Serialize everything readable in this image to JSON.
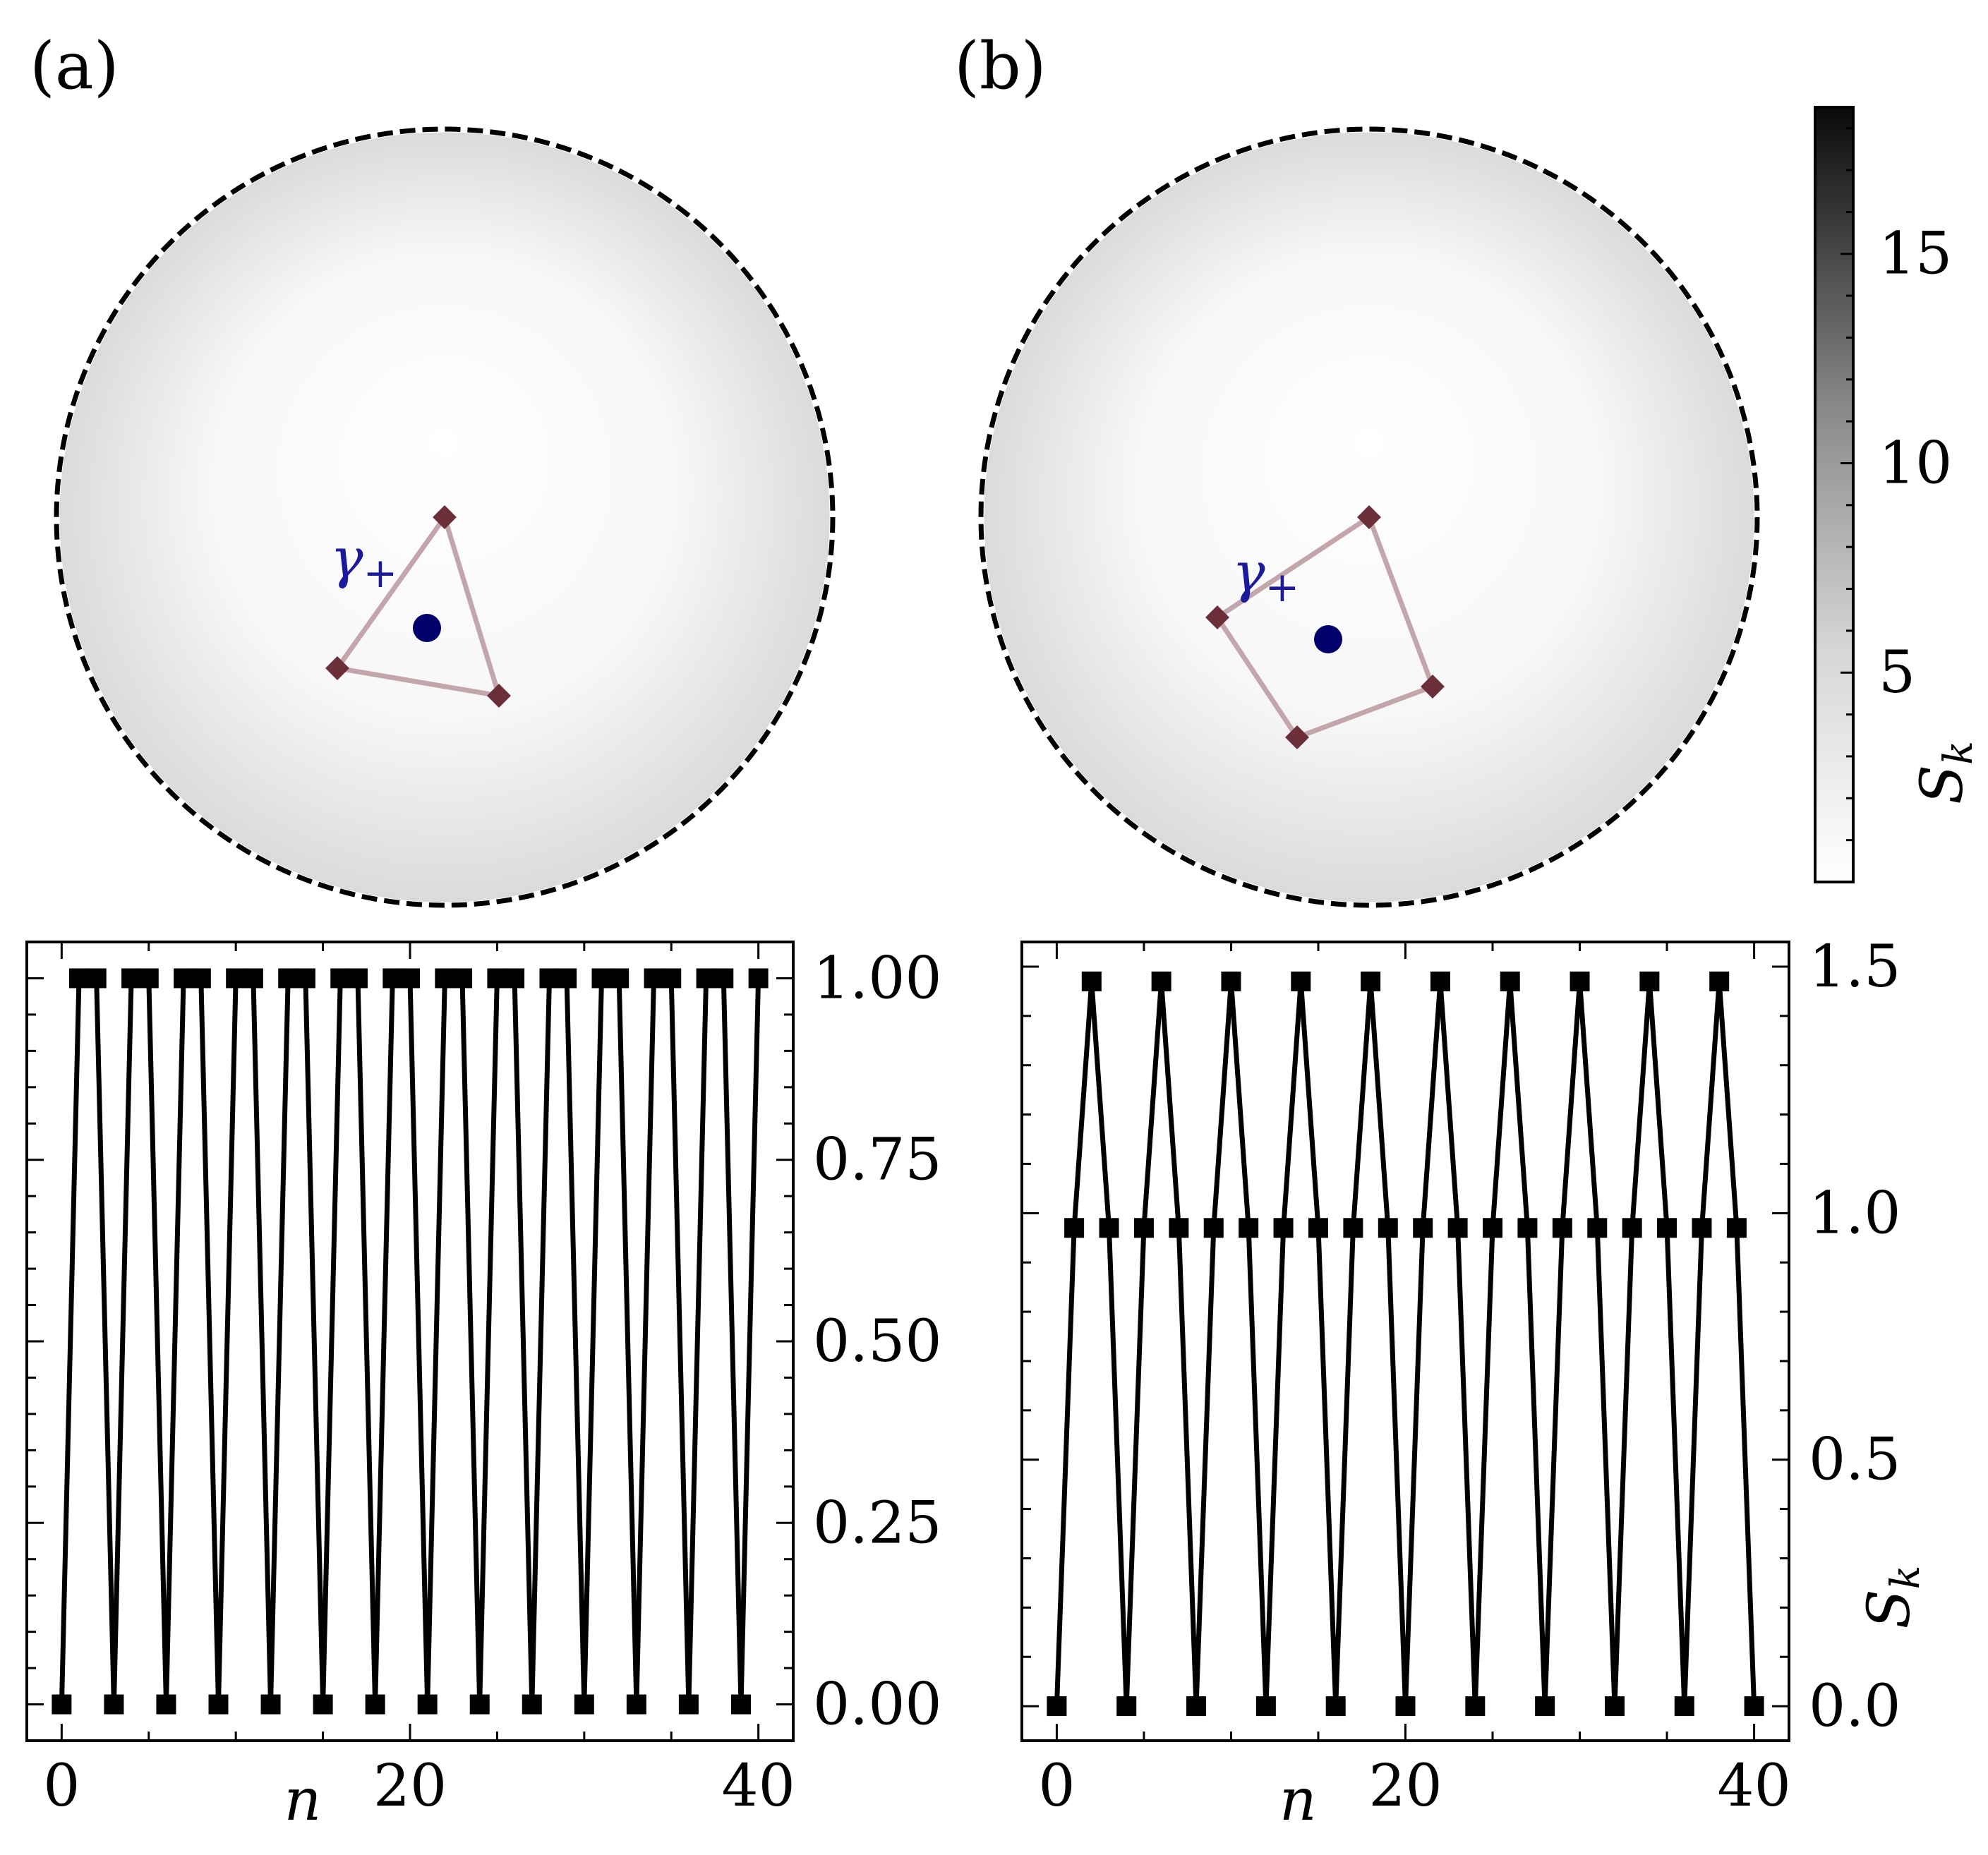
{
  "panel_labels": {
    "a": "(a)",
    "b": "(b)"
  },
  "colors": {
    "contour": "#6b2f3a",
    "contour_line": "#c3a6ab",
    "point": "#00006b",
    "gamma_label": "#1a1a9a",
    "line": "#000000"
  },
  "gamma_label": "γ+",
  "colorbar": {
    "label": "S_k",
    "range": [
      0,
      18.5
    ],
    "ticks": [
      5,
      10,
      15
    ],
    "tick_labels": [
      "5",
      "10",
      "15"
    ]
  },
  "chart_data": [
    {
      "panel": "(a)",
      "type": "line",
      "xlabel": "n",
      "ylabel": "",
      "xlim": [
        -2,
        42
      ],
      "ylim": [
        -0.05,
        1.05
      ],
      "xticks": [
        0,
        20,
        40
      ],
      "xtick_labels": [
        "0",
        "20",
        "40"
      ],
      "yticks": [
        0,
        0.25,
        0.5,
        0.75,
        1.0
      ],
      "ytick_labels": [
        "0.00",
        "0.25",
        "0.50",
        "0.75",
        "1.00"
      ],
      "period_pattern": [
        0,
        1,
        1
      ],
      "x": [
        0,
        1,
        2,
        3,
        4,
        5,
        6,
        7,
        8,
        9,
        10,
        11,
        12,
        13,
        14,
        15,
        16,
        17,
        18,
        19,
        20,
        21,
        22,
        23,
        24,
        25,
        26,
        27,
        28,
        29,
        30,
        31,
        32,
        33,
        34,
        35,
        36,
        37,
        38,
        39,
        40
      ],
      "values": [
        0,
        1,
        1,
        0,
        1,
        1,
        0,
        1,
        1,
        0,
        1,
        1,
        0,
        1,
        1,
        0,
        1,
        1,
        0,
        1,
        1,
        0,
        1,
        1,
        0,
        1,
        1,
        0,
        1,
        1,
        0,
        1,
        1,
        0,
        1,
        1,
        0,
        1,
        1,
        0,
        1
      ]
    },
    {
      "panel": "(b)",
      "type": "line",
      "xlabel": "n",
      "ylabel": "S_k",
      "xlim": [
        -2,
        42
      ],
      "ylim": [
        -0.07,
        1.55
      ],
      "xticks": [
        0,
        20,
        40
      ],
      "xtick_labels": [
        "0",
        "20",
        "40"
      ],
      "yticks": [
        0,
        0.5,
        1.0,
        1.5
      ],
      "ytick_labels": [
        "0.0",
        "0.5",
        "1.0",
        "1.5"
      ],
      "period_pattern": [
        0,
        0.97,
        1.47,
        0.97
      ],
      "x": [
        0,
        1,
        2,
        3,
        4,
        5,
        6,
        7,
        8,
        9,
        10,
        11,
        12,
        13,
        14,
        15,
        16,
        17,
        18,
        19,
        20,
        21,
        22,
        23,
        24,
        25,
        26,
        27,
        28,
        29,
        30,
        31,
        32,
        33,
        34,
        35,
        36,
        37,
        38,
        39,
        40
      ],
      "values": [
        0,
        0.97,
        1.47,
        0.97,
        0,
        0.97,
        1.47,
        0.97,
        0,
        0.97,
        1.47,
        0.97,
        0,
        0.97,
        1.47,
        0.97,
        0,
        0.97,
        1.47,
        0.97,
        0,
        0.97,
        1.47,
        0.97,
        0,
        0.97,
        1.47,
        0.97,
        0,
        0.97,
        1.47,
        0.97,
        0,
        0.97,
        1.47,
        0.97,
        0,
        0.97,
        1.47,
        0.97,
        0
      ]
    }
  ]
}
